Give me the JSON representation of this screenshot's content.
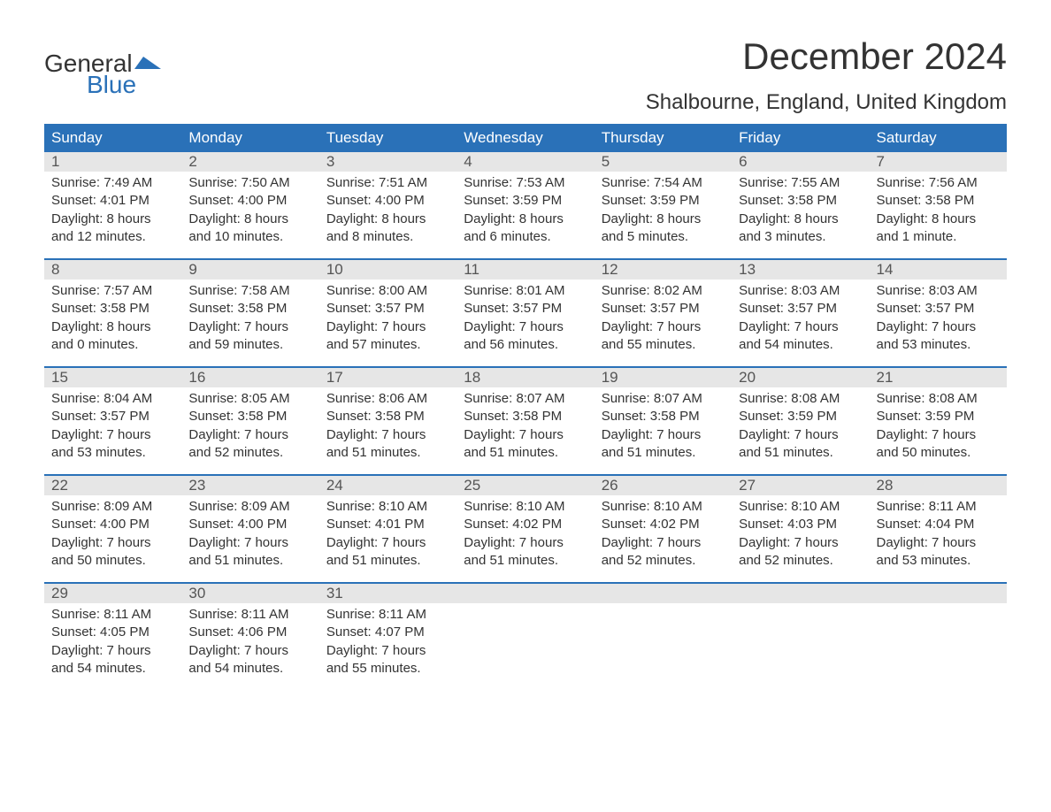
{
  "logo": {
    "word1": "General",
    "word2": "Blue",
    "accent_color": "#2a71b8",
    "text_color": "#333333"
  },
  "title": "December 2024",
  "location": "Shalbourne, England, United Kingdom",
  "colors": {
    "header_bg": "#2a71b8",
    "header_text": "#ffffff",
    "daynum_bg": "#e6e6e6",
    "week_border": "#2a71b8",
    "body_text": "#333333",
    "background": "#ffffff"
  },
  "typography": {
    "title_fontsize": 42,
    "location_fontsize": 24,
    "dayheader_fontsize": 17,
    "cell_fontsize": 15,
    "font_family": "Arial"
  },
  "layout": {
    "columns": 7,
    "weeks": 5
  },
  "day_headers": [
    "Sunday",
    "Monday",
    "Tuesday",
    "Wednesday",
    "Thursday",
    "Friday",
    "Saturday"
  ],
  "weeks": [
    {
      "nums": [
        "1",
        "2",
        "3",
        "4",
        "5",
        "6",
        "7"
      ],
      "cells": [
        {
          "sunrise": "Sunrise: 7:49 AM",
          "sunset": "Sunset: 4:01 PM",
          "d1": "Daylight: 8 hours",
          "d2": "and 12 minutes."
        },
        {
          "sunrise": "Sunrise: 7:50 AM",
          "sunset": "Sunset: 4:00 PM",
          "d1": "Daylight: 8 hours",
          "d2": "and 10 minutes."
        },
        {
          "sunrise": "Sunrise: 7:51 AM",
          "sunset": "Sunset: 4:00 PM",
          "d1": "Daylight: 8 hours",
          "d2": "and 8 minutes."
        },
        {
          "sunrise": "Sunrise: 7:53 AM",
          "sunset": "Sunset: 3:59 PM",
          "d1": "Daylight: 8 hours",
          "d2": "and 6 minutes."
        },
        {
          "sunrise": "Sunrise: 7:54 AM",
          "sunset": "Sunset: 3:59 PM",
          "d1": "Daylight: 8 hours",
          "d2": "and 5 minutes."
        },
        {
          "sunrise": "Sunrise: 7:55 AM",
          "sunset": "Sunset: 3:58 PM",
          "d1": "Daylight: 8 hours",
          "d2": "and 3 minutes."
        },
        {
          "sunrise": "Sunrise: 7:56 AM",
          "sunset": "Sunset: 3:58 PM",
          "d1": "Daylight: 8 hours",
          "d2": "and 1 minute."
        }
      ]
    },
    {
      "nums": [
        "8",
        "9",
        "10",
        "11",
        "12",
        "13",
        "14"
      ],
      "cells": [
        {
          "sunrise": "Sunrise: 7:57 AM",
          "sunset": "Sunset: 3:58 PM",
          "d1": "Daylight: 8 hours",
          "d2": "and 0 minutes."
        },
        {
          "sunrise": "Sunrise: 7:58 AM",
          "sunset": "Sunset: 3:58 PM",
          "d1": "Daylight: 7 hours",
          "d2": "and 59 minutes."
        },
        {
          "sunrise": "Sunrise: 8:00 AM",
          "sunset": "Sunset: 3:57 PM",
          "d1": "Daylight: 7 hours",
          "d2": "and 57 minutes."
        },
        {
          "sunrise": "Sunrise: 8:01 AM",
          "sunset": "Sunset: 3:57 PM",
          "d1": "Daylight: 7 hours",
          "d2": "and 56 minutes."
        },
        {
          "sunrise": "Sunrise: 8:02 AM",
          "sunset": "Sunset: 3:57 PM",
          "d1": "Daylight: 7 hours",
          "d2": "and 55 minutes."
        },
        {
          "sunrise": "Sunrise: 8:03 AM",
          "sunset": "Sunset: 3:57 PM",
          "d1": "Daylight: 7 hours",
          "d2": "and 54 minutes."
        },
        {
          "sunrise": "Sunrise: 8:03 AM",
          "sunset": "Sunset: 3:57 PM",
          "d1": "Daylight: 7 hours",
          "d2": "and 53 minutes."
        }
      ]
    },
    {
      "nums": [
        "15",
        "16",
        "17",
        "18",
        "19",
        "20",
        "21"
      ],
      "cells": [
        {
          "sunrise": "Sunrise: 8:04 AM",
          "sunset": "Sunset: 3:57 PM",
          "d1": "Daylight: 7 hours",
          "d2": "and 53 minutes."
        },
        {
          "sunrise": "Sunrise: 8:05 AM",
          "sunset": "Sunset: 3:58 PM",
          "d1": "Daylight: 7 hours",
          "d2": "and 52 minutes."
        },
        {
          "sunrise": "Sunrise: 8:06 AM",
          "sunset": "Sunset: 3:58 PM",
          "d1": "Daylight: 7 hours",
          "d2": "and 51 minutes."
        },
        {
          "sunrise": "Sunrise: 8:07 AM",
          "sunset": "Sunset: 3:58 PM",
          "d1": "Daylight: 7 hours",
          "d2": "and 51 minutes."
        },
        {
          "sunrise": "Sunrise: 8:07 AM",
          "sunset": "Sunset: 3:58 PM",
          "d1": "Daylight: 7 hours",
          "d2": "and 51 minutes."
        },
        {
          "sunrise": "Sunrise: 8:08 AM",
          "sunset": "Sunset: 3:59 PM",
          "d1": "Daylight: 7 hours",
          "d2": "and 51 minutes."
        },
        {
          "sunrise": "Sunrise: 8:08 AM",
          "sunset": "Sunset: 3:59 PM",
          "d1": "Daylight: 7 hours",
          "d2": "and 50 minutes."
        }
      ]
    },
    {
      "nums": [
        "22",
        "23",
        "24",
        "25",
        "26",
        "27",
        "28"
      ],
      "cells": [
        {
          "sunrise": "Sunrise: 8:09 AM",
          "sunset": "Sunset: 4:00 PM",
          "d1": "Daylight: 7 hours",
          "d2": "and 50 minutes."
        },
        {
          "sunrise": "Sunrise: 8:09 AM",
          "sunset": "Sunset: 4:00 PM",
          "d1": "Daylight: 7 hours",
          "d2": "and 51 minutes."
        },
        {
          "sunrise": "Sunrise: 8:10 AM",
          "sunset": "Sunset: 4:01 PM",
          "d1": "Daylight: 7 hours",
          "d2": "and 51 minutes."
        },
        {
          "sunrise": "Sunrise: 8:10 AM",
          "sunset": "Sunset: 4:02 PM",
          "d1": "Daylight: 7 hours",
          "d2": "and 51 minutes."
        },
        {
          "sunrise": "Sunrise: 8:10 AM",
          "sunset": "Sunset: 4:02 PM",
          "d1": "Daylight: 7 hours",
          "d2": "and 52 minutes."
        },
        {
          "sunrise": "Sunrise: 8:10 AM",
          "sunset": "Sunset: 4:03 PM",
          "d1": "Daylight: 7 hours",
          "d2": "and 52 minutes."
        },
        {
          "sunrise": "Sunrise: 8:11 AM",
          "sunset": "Sunset: 4:04 PM",
          "d1": "Daylight: 7 hours",
          "d2": "and 53 minutes."
        }
      ]
    },
    {
      "nums": [
        "29",
        "30",
        "31",
        "",
        "",
        "",
        ""
      ],
      "cells": [
        {
          "sunrise": "Sunrise: 8:11 AM",
          "sunset": "Sunset: 4:05 PM",
          "d1": "Daylight: 7 hours",
          "d2": "and 54 minutes."
        },
        {
          "sunrise": "Sunrise: 8:11 AM",
          "sunset": "Sunset: 4:06 PM",
          "d1": "Daylight: 7 hours",
          "d2": "and 54 minutes."
        },
        {
          "sunrise": "Sunrise: 8:11 AM",
          "sunset": "Sunset: 4:07 PM",
          "d1": "Daylight: 7 hours",
          "d2": "and 55 minutes."
        },
        null,
        null,
        null,
        null
      ]
    }
  ]
}
